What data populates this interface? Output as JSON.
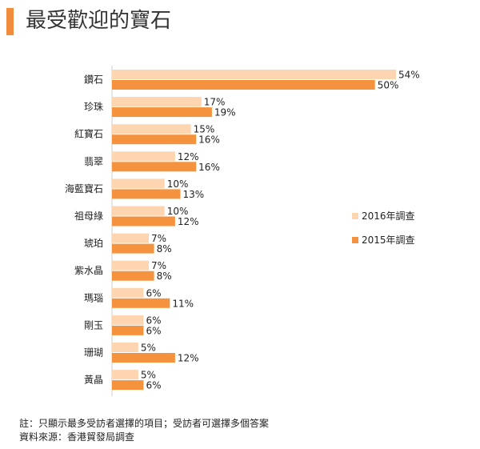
{
  "title": "最受歡迎的寶石",
  "colors": {
    "accent": "#f08c3c",
    "series_2016": "#fdd5b1",
    "series_2015": "#f4923e"
  },
  "chart_data": {
    "type": "bar",
    "orientation": "horizontal",
    "title": "最受歡迎的寶石",
    "categories": [
      "鑽石",
      "珍珠",
      "紅寶石",
      "翡翠",
      "海藍寶石",
      "祖母綠",
      "琥珀",
      "紫水晶",
      "瑪瑙",
      "剛玉",
      "珊瑚",
      "黃晶"
    ],
    "series": [
      {
        "name": "2016年調查",
        "color": "#fdd5b1",
        "values": [
          54,
          17,
          15,
          12,
          10,
          10,
          7,
          7,
          6,
          6,
          5,
          5
        ]
      },
      {
        "name": "2015年調查",
        "color": "#f4923e",
        "values": [
          50,
          19,
          16,
          16,
          13,
          12,
          8,
          8,
          11,
          6,
          12,
          6
        ]
      }
    ],
    "value_suffix": "%",
    "xlim": [
      0,
      54
    ],
    "legend_position": "right",
    "grid": false
  },
  "notes": [
    "註：只顯示最多受訪者選擇的項目；受訪者可選擇多個答案",
    "資料來源：香港貿發局調查"
  ]
}
